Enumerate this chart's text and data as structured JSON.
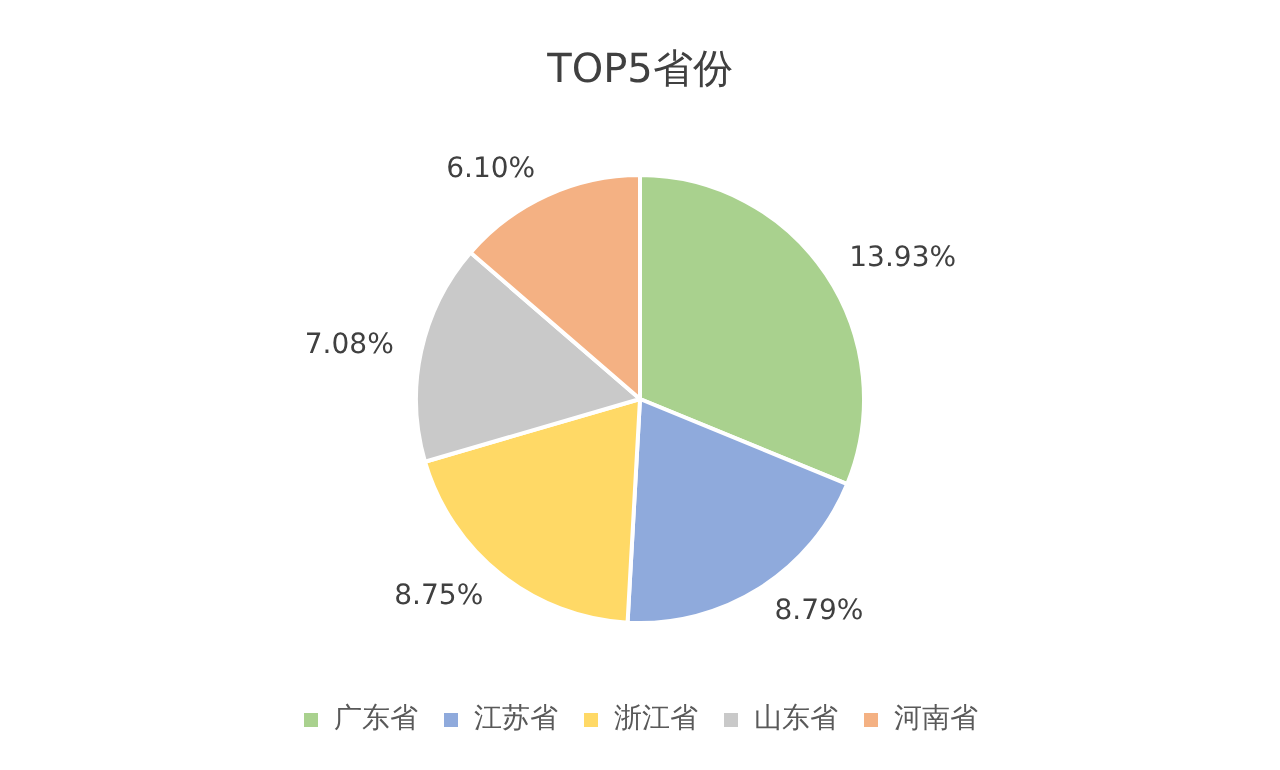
{
  "chart_data": {
    "type": "pie",
    "title": "TOP5省份",
    "categories": [
      "广东省",
      "江苏省",
      "浙江省",
      "山东省",
      "河南省"
    ],
    "values": [
      13.93,
      8.79,
      8.75,
      7.08,
      6.1
    ],
    "value_labels": [
      "13.93%",
      "8.79%",
      "8.75%",
      "7.08%",
      "6.10%"
    ],
    "colors": [
      "#a9d18e",
      "#8faadc",
      "#ffd966",
      "#c9c9c9",
      "#f4b183"
    ],
    "legend": "bottom"
  }
}
